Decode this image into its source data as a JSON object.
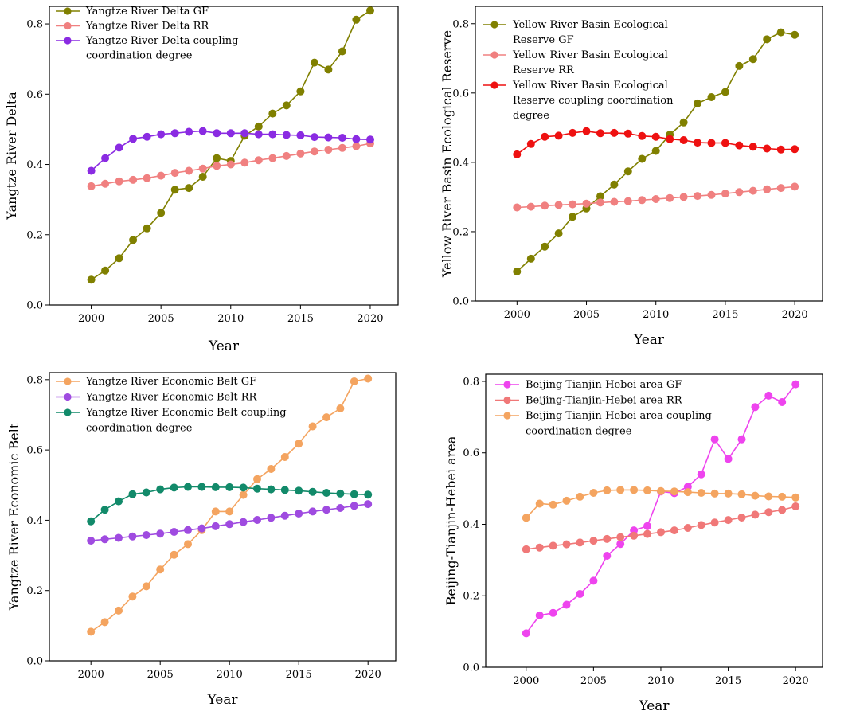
{
  "chart_data": [
    {
      "type": "line",
      "title": "",
      "xlabel": "Year",
      "ylabel": "Yangtze River Delta",
      "xlim": [
        1997,
        2022
      ],
      "ylim": [
        0,
        0.85
      ],
      "xticks": [
        2000,
        2005,
        2010,
        2015,
        2020
      ],
      "yticks": [
        0.0,
        0.2,
        0.4,
        0.6,
        0.8
      ],
      "legend": "top-left",
      "x": [
        2000,
        2001,
        2002,
        2003,
        2004,
        2005,
        2006,
        2007,
        2008,
        2009,
        2010,
        2011,
        2012,
        2013,
        2014,
        2015,
        2016,
        2017,
        2018,
        2019,
        2020
      ],
      "series": [
        {
          "name": "Yangtze River Delta GF",
          "legend_lines": [
            "Yangtze River Delta GF"
          ],
          "color": "#808000",
          "values": [
            0.072,
            0.098,
            0.133,
            0.185,
            0.218,
            0.262,
            0.328,
            0.333,
            0.365,
            0.418,
            0.41,
            0.482,
            0.508,
            0.545,
            0.568,
            0.608,
            0.69,
            0.67,
            0.722,
            0.812,
            0.838
          ]
        },
        {
          "name": "Yangtze River Delta RR",
          "legend_lines": [
            "Yangtze River Delta RR"
          ],
          "color": "#f08080",
          "values": [
            0.338,
            0.345,
            0.352,
            0.356,
            0.361,
            0.368,
            0.376,
            0.382,
            0.388,
            0.396,
            0.4,
            0.405,
            0.412,
            0.418,
            0.424,
            0.431,
            0.437,
            0.442,
            0.447,
            0.452,
            0.46
          ]
        },
        {
          "name": "Yangtze River Delta coupling coordination degree",
          "legend_lines": [
            "Yangtze River Delta coupling",
            "coordination degree"
          ],
          "color": "#8a2be2",
          "values": [
            0.382,
            0.418,
            0.448,
            0.473,
            0.479,
            0.486,
            0.489,
            0.493,
            0.495,
            0.489,
            0.489,
            0.489,
            0.486,
            0.486,
            0.484,
            0.483,
            0.478,
            0.477,
            0.476,
            0.472,
            0.471
          ]
        }
      ]
    },
    {
      "type": "line",
      "title": "",
      "xlabel": "Year",
      "ylabel": "Yellow River Basin Ecological Reserve",
      "xlim": [
        1997,
        2022
      ],
      "ylim": [
        0,
        0.85
      ],
      "xticks": [
        2000,
        2005,
        2010,
        2015,
        2020
      ],
      "yticks": [
        0.0,
        0.2,
        0.4,
        0.6,
        0.8
      ],
      "legend": "top-left",
      "x": [
        2000,
        2001,
        2002,
        2003,
        2004,
        2005,
        2006,
        2007,
        2008,
        2009,
        2010,
        2011,
        2012,
        2013,
        2014,
        2015,
        2016,
        2017,
        2018,
        2019,
        2020
      ],
      "series": [
        {
          "name": "Yellow River Basin Ecological Reserve GF",
          "legend_lines": [
            "Yellow River Basin Ecological",
            "Reserve  GF"
          ],
          "color": "#808000",
          "values": [
            0.085,
            0.122,
            0.157,
            0.195,
            0.243,
            0.267,
            0.302,
            0.336,
            0.374,
            0.41,
            0.433,
            0.48,
            0.515,
            0.57,
            0.588,
            0.603,
            0.678,
            0.698,
            0.755,
            0.775,
            0.768
          ]
        },
        {
          "name": "Yellow River Basin Ecological Reserve RR",
          "legend_lines": [
            "Yellow River Basin Ecological",
            "Reserve  RR"
          ],
          "color": "#f08080",
          "values": [
            0.27,
            0.272,
            0.275,
            0.277,
            0.279,
            0.281,
            0.284,
            0.286,
            0.288,
            0.291,
            0.294,
            0.297,
            0.3,
            0.303,
            0.306,
            0.31,
            0.314,
            0.318,
            0.322,
            0.326,
            0.33
          ]
        },
        {
          "name": "Yellow River Basin Ecological Reserve coupling coordination degree",
          "legend_lines": [
            "Yellow River Basin Ecological",
            "Reserve  coupling coordination",
            "degree"
          ],
          "color": "#ee1111",
          "values": [
            0.423,
            0.453,
            0.474,
            0.477,
            0.485,
            0.49,
            0.484,
            0.485,
            0.483,
            0.476,
            0.474,
            0.467,
            0.464,
            0.457,
            0.456,
            0.456,
            0.449,
            0.445,
            0.44,
            0.437,
            0.438
          ]
        }
      ]
    },
    {
      "type": "line",
      "title": "",
      "xlabel": "Year",
      "ylabel": "Yangtze River Economic Belt",
      "xlim": [
        1997,
        2022
      ],
      "ylim": [
        0,
        0.82
      ],
      "xticks": [
        2000,
        2005,
        2010,
        2015,
        2020
      ],
      "yticks": [
        0.0,
        0.2,
        0.4,
        0.6,
        0.8
      ],
      "legend": "top-left",
      "x": [
        2000,
        2001,
        2002,
        2003,
        2004,
        2005,
        2006,
        2007,
        2008,
        2009,
        2010,
        2011,
        2012,
        2013,
        2014,
        2015,
        2016,
        2017,
        2018,
        2019,
        2020
      ],
      "series": [
        {
          "name": "Yangtze River Economic Belt GF",
          "legend_lines": [
            "Yangtze River Economic Belt GF"
          ],
          "color": "#f4a460",
          "values": [
            0.083,
            0.11,
            0.143,
            0.183,
            0.212,
            0.26,
            0.302,
            0.332,
            0.372,
            0.425,
            0.425,
            0.472,
            0.517,
            0.546,
            0.58,
            0.618,
            0.667,
            0.693,
            0.718,
            0.795,
            0.803
          ]
        },
        {
          "name": "Yangtze River Economic Belt RR",
          "legend_lines": [
            "Yangtze River Economic Belt RR"
          ],
          "color": "#9f4be0",
          "values": [
            0.342,
            0.346,
            0.35,
            0.354,
            0.358,
            0.362,
            0.367,
            0.372,
            0.377,
            0.383,
            0.389,
            0.395,
            0.401,
            0.407,
            0.413,
            0.419,
            0.425,
            0.43,
            0.435,
            0.441,
            0.446
          ]
        },
        {
          "name": "Yangtze River Economic Belt coupling coordination degree",
          "legend_lines": [
            "Yangtze River Economic Belt coupling",
            "coordination degree"
          ],
          "color": "#128a6a",
          "values": [
            0.397,
            0.43,
            0.454,
            0.474,
            0.479,
            0.488,
            0.493,
            0.495,
            0.495,
            0.494,
            0.494,
            0.493,
            0.49,
            0.488,
            0.486,
            0.484,
            0.481,
            0.478,
            0.476,
            0.474,
            0.473
          ]
        }
      ]
    },
    {
      "type": "line",
      "title": "",
      "xlabel": "Year",
      "ylabel": "Beijing-Tianjin-Hebei area",
      "xlim": [
        1997,
        2022
      ],
      "ylim": [
        0,
        0.82
      ],
      "xticks": [
        2000,
        2005,
        2010,
        2015,
        2020
      ],
      "yticks": [
        0.0,
        0.2,
        0.4,
        0.6,
        0.8
      ],
      "legend": "top-left",
      "x": [
        2000,
        2001,
        2002,
        2003,
        2004,
        2005,
        2006,
        2007,
        2008,
        2009,
        2010,
        2011,
        2012,
        2013,
        2014,
        2015,
        2016,
        2017,
        2018,
        2019,
        2020
      ],
      "series": [
        {
          "name": "Beijing-Tianjin-Hebei area GF",
          "legend_lines": [
            "Beijing-Tianjin-Hebei area GF"
          ],
          "color": "#ee44ee",
          "values": [
            0.095,
            0.145,
            0.152,
            0.175,
            0.205,
            0.242,
            0.312,
            0.345,
            0.383,
            0.395,
            0.492,
            0.487,
            0.505,
            0.54,
            0.638,
            0.583,
            0.638,
            0.728,
            0.76,
            0.742,
            0.792
          ]
        },
        {
          "name": "Beijing-Tianjin-Hebei area RR",
          "legend_lines": [
            "Beijing-Tianjin-Hebei area RR"
          ],
          "color": "#f07878",
          "values": [
            0.33,
            0.335,
            0.34,
            0.344,
            0.349,
            0.354,
            0.359,
            0.364,
            0.368,
            0.373,
            0.378,
            0.383,
            0.39,
            0.398,
            0.405,
            0.412,
            0.419,
            0.427,
            0.434,
            0.44,
            0.45
          ]
        },
        {
          "name": "Beijing-Tianjin-Hebei area coupling coordination degree",
          "legend_lines": [
            "Beijing-Tianjin-Hebei area coupling",
            "coordination degree"
          ],
          "color": "#f4a460",
          "values": [
            0.418,
            0.458,
            0.455,
            0.466,
            0.477,
            0.488,
            0.495,
            0.496,
            0.496,
            0.495,
            0.493,
            0.492,
            0.49,
            0.488,
            0.486,
            0.486,
            0.484,
            0.48,
            0.478,
            0.477,
            0.475
          ]
        }
      ]
    }
  ]
}
